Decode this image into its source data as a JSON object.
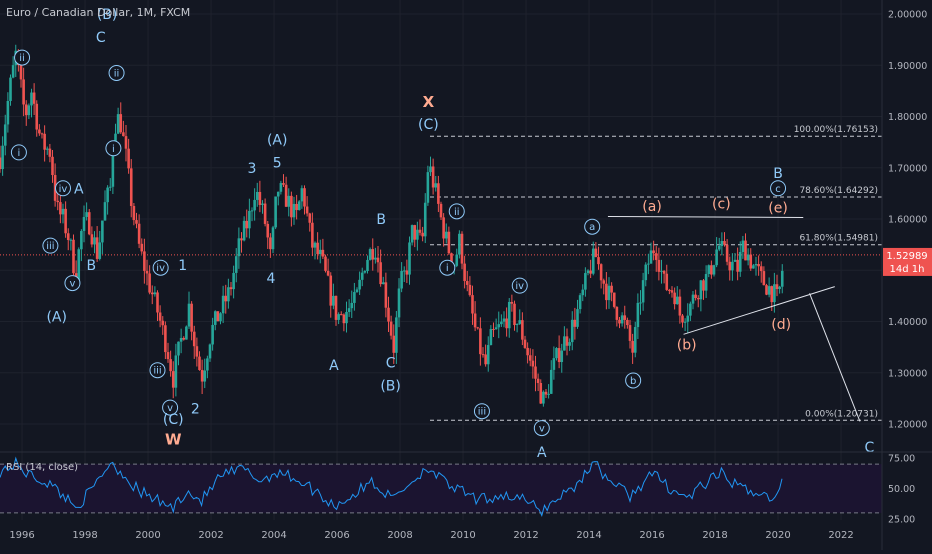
{
  "header": {
    "title": "Euro / Canadian Dollar, 1M, FXCM"
  },
  "rsi": {
    "title": "RSI (14, close)",
    "ticks": [
      "75.00",
      "50.00",
      "25.00"
    ],
    "levels": [
      70,
      30
    ]
  },
  "price_badge": {
    "value": "1.52989",
    "countdown": "14d 1h"
  },
  "colors": {
    "up": "#26a69a",
    "down": "#ef5350",
    "blue_label": "#90caf9",
    "orange_label": "#ffab91",
    "rsi_line": "#2196f3",
    "rsi_band": "#1b1430"
  },
  "chart_data": {
    "type": "candlestick",
    "ylim": [
      1.17,
      2.02
    ],
    "xlim": [
      1995.3,
      2023.3
    ],
    "y_ticks": [
      "2.00000",
      "1.90000",
      "1.80000",
      "1.70000",
      "1.60000",
      "1.50000",
      "1.40000",
      "1.30000",
      "1.20000"
    ],
    "x_ticks": [
      "1996",
      "1998",
      "2000",
      "2002",
      "2004",
      "2006",
      "2008",
      "2010",
      "2012",
      "2014",
      "2016",
      "2018",
      "2020",
      "2022"
    ],
    "last_price": 1.52989,
    "price_path": [
      [
        1995.3,
        1.72
      ],
      [
        1995.6,
        1.85
      ],
      [
        1995.8,
        1.92
      ],
      [
        1996.1,
        1.8
      ],
      [
        1996.3,
        1.85
      ],
      [
        1996.6,
        1.75
      ],
      [
        1996.9,
        1.73
      ],
      [
        1997.1,
        1.62
      ],
      [
        1997.3,
        1.6
      ],
      [
        1997.5,
        1.56
      ],
      [
        1997.7,
        1.49
      ],
      [
        1997.9,
        1.58
      ],
      [
        1998.1,
        1.6
      ],
      [
        1998.4,
        1.53
      ],
      [
        1998.6,
        1.62
      ],
      [
        1998.8,
        1.66
      ],
      [
        1998.9,
        1.78
      ],
      [
        1999.1,
        1.8
      ],
      [
        1999.3,
        1.72
      ],
      [
        1999.5,
        1.62
      ],
      [
        1999.7,
        1.55
      ],
      [
        2000.0,
        1.48
      ],
      [
        2000.3,
        1.42
      ],
      [
        2000.6,
        1.35
      ],
      [
        2000.8,
        1.29
      ],
      [
        2001.0,
        1.35
      ],
      [
        2001.3,
        1.43
      ],
      [
        2001.5,
        1.35
      ],
      [
        2001.7,
        1.29
      ],
      [
        2002.0,
        1.38
      ],
      [
        2002.3,
        1.42
      ],
      [
        2002.6,
        1.46
      ],
      [
        2002.9,
        1.55
      ],
      [
        2003.2,
        1.6
      ],
      [
        2003.4,
        1.66
      ],
      [
        2003.7,
        1.6
      ],
      [
        2003.9,
        1.52
      ],
      [
        2004.1,
        1.66
      ],
      [
        2004.4,
        1.64
      ],
      [
        2004.7,
        1.6
      ],
      [
        2004.9,
        1.66
      ],
      [
        2005.2,
        1.55
      ],
      [
        2005.5,
        1.52
      ],
      [
        2005.8,
        1.45
      ],
      [
        2006.0,
        1.41
      ],
      [
        2006.3,
        1.42
      ],
      [
        2006.6,
        1.44
      ],
      [
        2006.9,
        1.52
      ],
      [
        2007.2,
        1.55
      ],
      [
        2007.5,
        1.46
      ],
      [
        2007.8,
        1.35
      ],
      [
        2008.0,
        1.47
      ],
      [
        2008.2,
        1.5
      ],
      [
        2008.4,
        1.58
      ],
      [
        2008.7,
        1.55
      ],
      [
        2008.9,
        1.71
      ],
      [
        2009.1,
        1.66
      ],
      [
        2009.3,
        1.6
      ],
      [
        2009.5,
        1.55
      ],
      [
        2009.7,
        1.51
      ],
      [
        2009.9,
        1.56
      ],
      [
        2010.1,
        1.47
      ],
      [
        2010.4,
        1.38
      ],
      [
        2010.7,
        1.31
      ],
      [
        2010.9,
        1.37
      ],
      [
        2011.2,
        1.39
      ],
      [
        2011.5,
        1.42
      ],
      [
        2011.8,
        1.39
      ],
      [
        2012.1,
        1.33
      ],
      [
        2012.4,
        1.27
      ],
      [
        2012.6,
        1.24
      ],
      [
        2012.8,
        1.3
      ],
      [
        2013.1,
        1.35
      ],
      [
        2013.4,
        1.38
      ],
      [
        2013.7,
        1.43
      ],
      [
        2014.0,
        1.5
      ],
      [
        2014.2,
        1.53
      ],
      [
        2014.5,
        1.47
      ],
      [
        2014.8,
        1.43
      ],
      [
        2015.1,
        1.4
      ],
      [
        2015.4,
        1.34
      ],
      [
        2015.6,
        1.44
      ],
      [
        2015.9,
        1.52
      ],
      [
        2016.1,
        1.55
      ],
      [
        2016.4,
        1.47
      ],
      [
        2016.7,
        1.46
      ],
      [
        2016.9,
        1.41
      ],
      [
        2017.2,
        1.43
      ],
      [
        2017.5,
        1.47
      ],
      [
        2017.8,
        1.49
      ],
      [
        2018.1,
        1.55
      ],
      [
        2018.4,
        1.52
      ],
      [
        2018.7,
        1.5
      ],
      [
        2018.9,
        1.55
      ],
      [
        2019.2,
        1.51
      ],
      [
        2019.5,
        1.48
      ],
      [
        2019.8,
        1.46
      ],
      [
        2020.0,
        1.44
      ],
      [
        2020.2,
        1.53
      ]
    ],
    "rsi_path": [
      [
        1995.3,
        64
      ],
      [
        1995.8,
        70
      ],
      [
        1996.3,
        60
      ],
      [
        1996.8,
        55
      ],
      [
        1997.3,
        45
      ],
      [
        1997.7,
        35
      ],
      [
        1998.2,
        48
      ],
      [
        1998.8,
        72
      ],
      [
        1999.2,
        62
      ],
      [
        1999.7,
        48
      ],
      [
        2000.3,
        40
      ],
      [
        2000.8,
        34
      ],
      [
        2001.2,
        48
      ],
      [
        2001.7,
        40
      ],
      [
        2002.3,
        60
      ],
      [
        2003.0,
        66
      ],
      [
        2003.6,
        56
      ],
      [
        2004.1,
        64
      ],
      [
        2004.7,
        58
      ],
      [
        2005.3,
        48
      ],
      [
        2005.9,
        36
      ],
      [
        2006.5,
        44
      ],
      [
        2007.1,
        56
      ],
      [
        2007.7,
        42
      ],
      [
        2008.3,
        54
      ],
      [
        2008.9,
        68
      ],
      [
        2009.4,
        55
      ],
      [
        2009.9,
        48
      ],
      [
        2010.5,
        40
      ],
      [
        2011.2,
        45
      ],
      [
        2011.8,
        42
      ],
      [
        2012.5,
        32
      ],
      [
        2013.1,
        44
      ],
      [
        2013.7,
        55
      ],
      [
        2014.1,
        72
      ],
      [
        2014.6,
        58
      ],
      [
        2015.3,
        44
      ],
      [
        2016.0,
        62
      ],
      [
        2016.6,
        50
      ],
      [
        2017.1,
        42
      ],
      [
        2017.7,
        54
      ],
      [
        2018.2,
        62
      ],
      [
        2018.8,
        50
      ],
      [
        2019.3,
        48
      ],
      [
        2019.9,
        40
      ],
      [
        2020.2,
        60
      ]
    ],
    "fib_levels": [
      {
        "label": "100.00%(1.76153)",
        "value": 1.76153
      },
      {
        "label": "78.60%(1.64292)",
        "value": 1.64292
      },
      {
        "label": "61.80%(1.54981)",
        "value": 1.54981
      },
      {
        "label": "0.00%(1.20731)",
        "value": 1.20731
      }
    ],
    "wave_labels": [
      {
        "text": "ii",
        "x": 1996.0,
        "y": 1.915,
        "color": "blue",
        "circled": true
      },
      {
        "text": "(B)",
        "x": 1998.7,
        "y": 2.0,
        "color": "blue",
        "circled": false
      },
      {
        "text": "C",
        "x": 1998.5,
        "y": 1.955,
        "color": "blue",
        "circled": false
      },
      {
        "text": "ii",
        "x": 1999.0,
        "y": 1.885,
        "color": "blue",
        "circled": true
      },
      {
        "text": "i",
        "x": 1995.9,
        "y": 1.73,
        "color": "blue",
        "circled": true
      },
      {
        "text": "i",
        "x": 1998.9,
        "y": 1.738,
        "color": "blue",
        "circled": true
      },
      {
        "text": "iv",
        "x": 1997.3,
        "y": 1.66,
        "color": "blue",
        "circled": true
      },
      {
        "text": "A",
        "x": 1997.8,
        "y": 1.66,
        "color": "blue",
        "circled": false
      },
      {
        "text": "iii",
        "x": 1996.9,
        "y": 1.548,
        "color": "blue",
        "circled": true
      },
      {
        "text": "B",
        "x": 1998.2,
        "y": 1.51,
        "color": "blue",
        "circled": false
      },
      {
        "text": "v",
        "x": 1997.6,
        "y": 1.475,
        "color": "blue",
        "circled": true
      },
      {
        "text": "(A)",
        "x": 1997.1,
        "y": 1.41,
        "color": "blue",
        "circled": false
      },
      {
        "text": "iv",
        "x": 2000.4,
        "y": 1.505,
        "color": "blue",
        "circled": true
      },
      {
        "text": "1",
        "x": 2001.1,
        "y": 1.51,
        "color": "blue",
        "circled": false
      },
      {
        "text": "iii",
        "x": 2000.3,
        "y": 1.305,
        "color": "blue",
        "circled": true
      },
      {
        "text": "v",
        "x": 2000.7,
        "y": 1.232,
        "color": "blue",
        "circled": true
      },
      {
        "text": "(C)",
        "x": 2000.8,
        "y": 1.21,
        "color": "blue",
        "circled": false
      },
      {
        "text": "2",
        "x": 2001.5,
        "y": 1.23,
        "color": "blue",
        "circled": false
      },
      {
        "text": "W",
        "x": 2000.8,
        "y": 1.17,
        "color": "orange",
        "circled": false
      },
      {
        "text": "3",
        "x": 2003.3,
        "y": 1.7,
        "color": "blue",
        "circled": false
      },
      {
        "text": "(A)",
        "x": 2004.1,
        "y": 1.755,
        "color": "blue",
        "circled": false
      },
      {
        "text": "5",
        "x": 2004.1,
        "y": 1.71,
        "color": "blue",
        "circled": false
      },
      {
        "text": "4",
        "x": 2003.9,
        "y": 1.485,
        "color": "blue",
        "circled": false
      },
      {
        "text": "B",
        "x": 2007.4,
        "y": 1.6,
        "color": "blue",
        "circled": false
      },
      {
        "text": "A",
        "x": 2005.9,
        "y": 1.315,
        "color": "blue",
        "circled": false
      },
      {
        "text": "C",
        "x": 2007.7,
        "y": 1.32,
        "color": "blue",
        "circled": false
      },
      {
        "text": "(B)",
        "x": 2007.7,
        "y": 1.275,
        "color": "blue",
        "circled": false
      },
      {
        "text": "X",
        "x": 2008.9,
        "y": 1.828,
        "color": "orange",
        "circled": false
      },
      {
        "text": "(C)",
        "x": 2008.9,
        "y": 1.785,
        "color": "blue",
        "circled": false
      },
      {
        "text": "ii",
        "x": 2009.8,
        "y": 1.615,
        "color": "blue",
        "circled": true
      },
      {
        "text": "i",
        "x": 2009.5,
        "y": 1.505,
        "color": "blue",
        "circled": true
      },
      {
        "text": "iv",
        "x": 2011.8,
        "y": 1.47,
        "color": "blue",
        "circled": true
      },
      {
        "text": "iii",
        "x": 2010.6,
        "y": 1.225,
        "color": "blue",
        "circled": true
      },
      {
        "text": "v",
        "x": 2012.5,
        "y": 1.192,
        "color": "blue",
        "circled": true
      },
      {
        "text": "A",
        "x": 2012.5,
        "y": 1.145,
        "color": "blue",
        "circled": false
      },
      {
        "text": "a",
        "x": 2014.1,
        "y": 1.585,
        "color": "blue",
        "circled": true
      },
      {
        "text": "b",
        "x": 2015.4,
        "y": 1.285,
        "color": "blue",
        "circled": true
      },
      {
        "text": "(a)",
        "x": 2016.0,
        "y": 1.625,
        "color": "orange",
        "circled": false
      },
      {
        "text": "(b)",
        "x": 2017.1,
        "y": 1.355,
        "color": "orange",
        "circled": false
      },
      {
        "text": "(c)",
        "x": 2018.2,
        "y": 1.63,
        "color": "orange",
        "circled": false
      },
      {
        "text": "(d)",
        "x": 2020.1,
        "y": 1.395,
        "color": "orange",
        "circled": false
      },
      {
        "text": "(e)",
        "x": 2020.0,
        "y": 1.622,
        "color": "orange",
        "circled": false
      },
      {
        "text": "B",
        "x": 2020.0,
        "y": 1.69,
        "color": "blue",
        "circled": false
      },
      {
        "text": "c",
        "x": 2020.0,
        "y": 1.66,
        "color": "blue",
        "circled": true
      },
      {
        "text": "C",
        "x": 2022.9,
        "y": 1.155,
        "color": "blue",
        "circled": false
      }
    ],
    "trendlines": [
      {
        "x1": 2014.6,
        "y1": 1.605,
        "x2": 2020.8,
        "y2": 1.603
      },
      {
        "x1": 2017.0,
        "y1": 1.375,
        "x2": 2021.8,
        "y2": 1.468
      },
      {
        "x1": 2021.0,
        "y1": 1.455,
        "x2": 2022.6,
        "y2": 1.205
      }
    ]
  }
}
